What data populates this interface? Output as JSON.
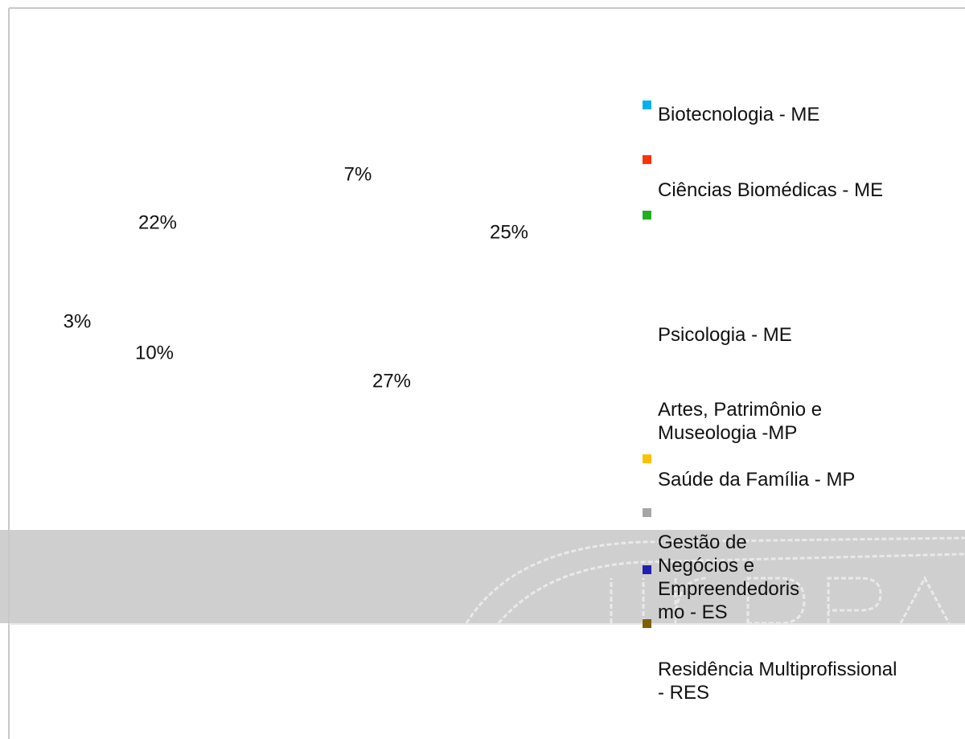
{
  "chart_data": {
    "type": "pie",
    "categories": [
      "Biotecnologia - ME",
      "Ciências Biomédicas - ME",
      "Psicologia - ME",
      "Artes, Patrimônio e Museologia -MP",
      "Saúde da Família - MP",
      "Gestão de Negócios e Empreendedorismo - ES",
      "Residência Multiprofissional - RES"
    ],
    "values": [
      7,
      25,
      27,
      10,
      3,
      22,
      null
    ],
    "value_labels": [
      "7%",
      "25%",
      "27%",
      "10%",
      "3%",
      "22%",
      null
    ],
    "colors": [
      "#00b0f0",
      "#ff3300",
      "#22b022",
      "#ffc000",
      "#a6a6a6",
      "#2020b0",
      "#7f6000"
    ]
  }
}
